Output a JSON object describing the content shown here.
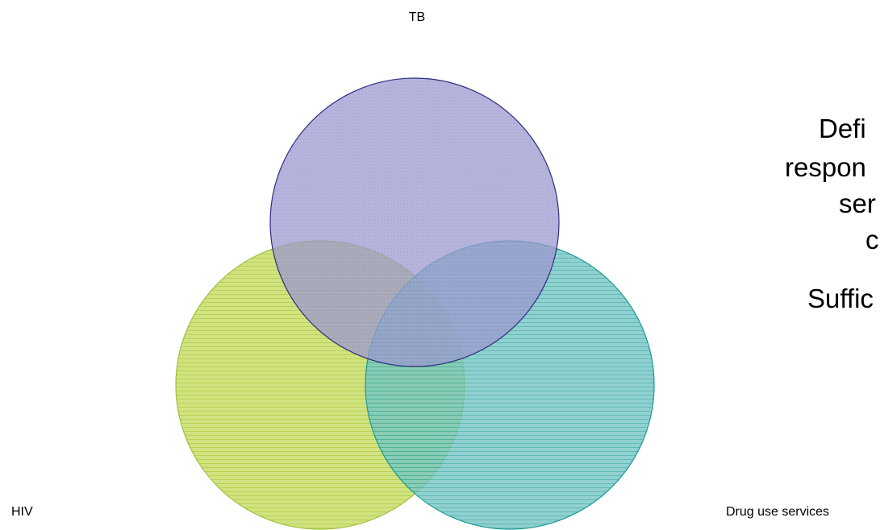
{
  "labels": {
    "top": "TB",
    "left": "HIV",
    "right": "Drug use services"
  },
  "side_text": [
    "Defi",
    "respon",
    "ser",
    "c",
    "Suffic"
  ]
}
